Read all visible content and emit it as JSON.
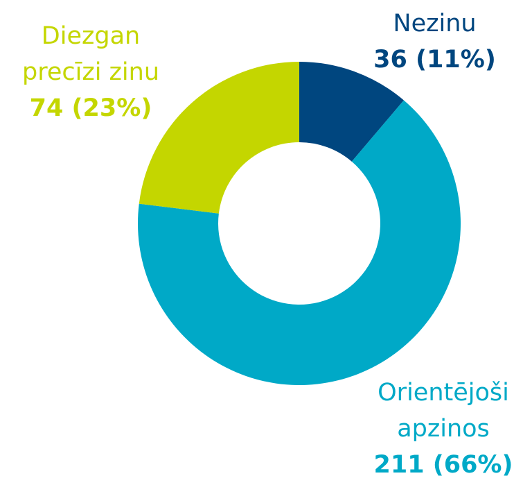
{
  "chart_data": {
    "type": "donut",
    "categories": [
      "Nezinu",
      "Orientējoši apzinos",
      "Diezgan precīzi zinu"
    ],
    "values": [
      36,
      211,
      74
    ],
    "value_labels": [
      "36 (11%)",
      "211 (66%)",
      "74 (23%)"
    ],
    "colors": [
      "#00467f",
      "#00a9c7",
      "#c4d600"
    ]
  }
}
